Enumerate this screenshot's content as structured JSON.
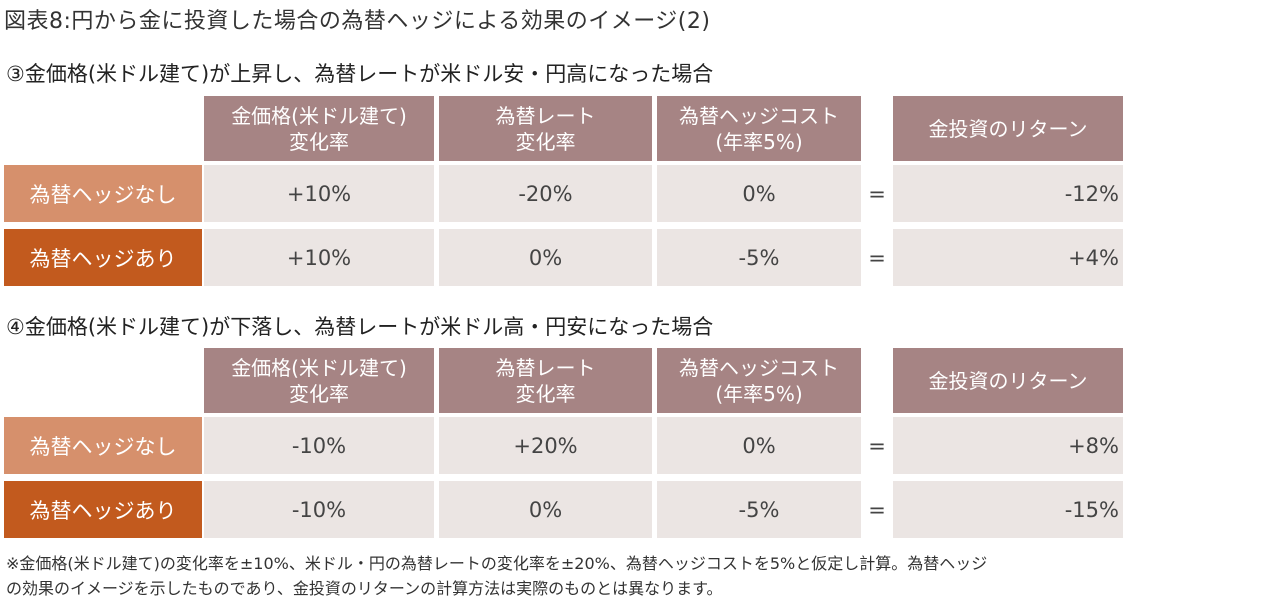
{
  "figure_title": "図表8:円から金に投資した場合の為替ヘッジによる効果のイメージ(2)",
  "headers": {
    "gold_change": [
      "金価格(米ドル建て)",
      "変化率"
    ],
    "fx_change": [
      "為替レート",
      "変化率"
    ],
    "hedge_cost": [
      "為替ヘッジコスト",
      "(年率5%)"
    ],
    "return": "金投資のリターン"
  },
  "equals": "=",
  "sections": [
    {
      "title": "③金価格(米ドル建て)が上昇し、為替レートが米ドル安・円高になった場合",
      "rows": [
        {
          "label": "為替ヘッジなし",
          "gold": "+10%",
          "fx": "-20%",
          "cost": "0%",
          "result": "-12%"
        },
        {
          "label": "為替ヘッジあり",
          "gold": "+10%",
          "fx": "0%",
          "cost": "-5%",
          "result": "+4%"
        }
      ]
    },
    {
      "title": "④金価格(米ドル建て)が下落し、為替レートが米ドル高・円安になった場合",
      "rows": [
        {
          "label": "為替ヘッジなし",
          "gold": "-10%",
          "fx": "+20%",
          "cost": "0%",
          "result": "+8%"
        },
        {
          "label": "為替ヘッジあり",
          "gold": "-10%",
          "fx": "0%",
          "cost": "-5%",
          "result": "-15%"
        }
      ]
    }
  ],
  "note": [
    "※金価格(米ドル建て)の変化率を±10%、米ドル・円の為替レートの変化率を±20%、為替ヘッジコストを5%と仮定し計算。為替ヘッジ",
    "の効果のイメージを示したものであり、金投資のリターンの計算方法は実際のものとは異なります。"
  ],
  "colors": {
    "header_bg": "#a68484",
    "value_bg": "#ebe5e3",
    "no_hedge_label_bg": "#d6906c",
    "hedge_label_bg": "#c25a1e"
  }
}
